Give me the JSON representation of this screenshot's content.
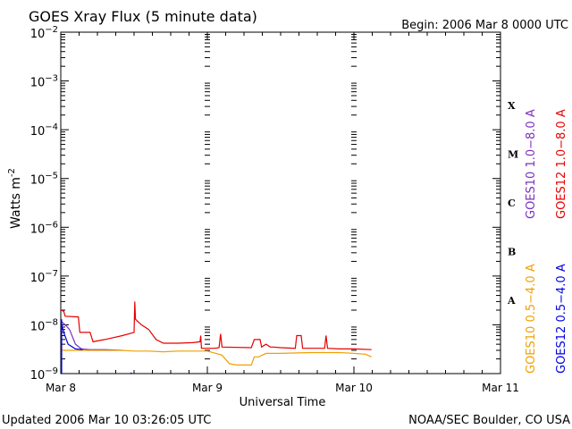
{
  "header": {
    "title": "GOES Xray Flux (5 minute data)",
    "begin": "Begin:  2006 Mar 8 0000 UTC"
  },
  "footer": {
    "updated": "Updated 2006 Mar 10 03:26:05 UTC",
    "source": "NOAA/SEC Boulder, CO USA"
  },
  "chart_data": {
    "type": "line",
    "title": "GOES Xray Flux (5 minute data)",
    "xlabel": "Universal Time",
    "ylabel": "Watts m",
    "ylabel_sup": "-2",
    "yscale": "log",
    "ylim": [
      1e-09,
      0.01
    ],
    "xlim": [
      0,
      3
    ],
    "x_unit": "days since 2006 Mar 8 0000 UTC",
    "x_ticks": [
      {
        "x": 0,
        "label": "Mar 8"
      },
      {
        "x": 1,
        "label": "Mar 9"
      },
      {
        "x": 2,
        "label": "Mar 10"
      },
      {
        "x": 3,
        "label": "Mar 11"
      }
    ],
    "y_ticks": [
      {
        "exp": -2,
        "base": "10",
        "sup": "−2"
      },
      {
        "exp": -3,
        "base": "10",
        "sup": "−3"
      },
      {
        "exp": -4,
        "base": "10",
        "sup": "−4"
      },
      {
        "exp": -5,
        "base": "10",
        "sup": "−5"
      },
      {
        "exp": -6,
        "base": "10",
        "sup": "−6"
      },
      {
        "exp": -7,
        "base": "10",
        "sup": "−7"
      },
      {
        "exp": -8,
        "base": "10",
        "sup": "−8"
      },
      {
        "exp": -9,
        "base": "10",
        "sup": "−9"
      }
    ],
    "flare_classes": [
      {
        "label": "X",
        "exp": -3.5
      },
      {
        "label": "M",
        "exp": -4.5
      },
      {
        "label": "C",
        "exp": -5.5
      },
      {
        "label": "B",
        "exp": -6.5
      },
      {
        "label": "A",
        "exp": -7.5
      }
    ],
    "grid": true,
    "legend_position": "right",
    "legend": [
      {
        "name": "GOES10 1.0-8.0 A",
        "label": "GOES10 1.0−8.0 A",
        "color": "#7b2fbe"
      },
      {
        "name": "GOES12 1.0-8.0 A",
        "label": "GOES12 1.0−8.0 A",
        "color": "#e60000"
      },
      {
        "name": "GOES10 0.5-4.0 A",
        "label": "GOES10 0.5−4.0 A",
        "color": "#f0a000"
      },
      {
        "name": "GOES12 0.5-4.0 A",
        "label": "GOES12 0.5−4.0 A",
        "color": "#0000e0"
      }
    ],
    "series": [
      {
        "name": "GOES10 1.0-8.0 A",
        "color": "#7b2fbe",
        "points": [
          [
            0.0,
            1.2e-08
          ],
          [
            0.03,
            1e-08
          ],
          [
            0.06,
            8e-09
          ],
          [
            0.1,
            4e-09
          ],
          [
            0.14,
            3.2e-09
          ],
          [
            0.2,
            3.1e-09
          ],
          [
            0.3,
            3.1e-09
          ],
          [
            0.42,
            3e-09
          ]
        ]
      },
      {
        "name": "GOES12 1.0-8.0 A",
        "color": "#e60000",
        "points": [
          [
            0.0,
            2e-08
          ],
          [
            0.02,
            1.9e-08
          ],
          [
            0.03,
            1.5e-08
          ],
          [
            0.12,
            1.45e-08
          ],
          [
            0.13,
            7e-09
          ],
          [
            0.2,
            7e-09
          ],
          [
            0.22,
            4.5e-09
          ],
          [
            0.3,
            5e-09
          ],
          [
            0.42,
            6e-09
          ],
          [
            0.5,
            7e-09
          ],
          [
            0.505,
            3e-08
          ],
          [
            0.51,
            1.3e-08
          ],
          [
            0.55,
            1e-08
          ],
          [
            0.6,
            8e-09
          ],
          [
            0.65,
            5e-09
          ],
          [
            0.7,
            4.2e-09
          ],
          [
            0.8,
            4.2e-09
          ],
          [
            0.9,
            4.3e-09
          ],
          [
            0.95,
            4.5e-09
          ],
          [
            0.955,
            6e-09
          ],
          [
            0.96,
            3.3e-09
          ],
          [
            1.05,
            3.3e-09
          ],
          [
            1.08,
            3.4e-09
          ],
          [
            1.09,
            6.5e-09
          ],
          [
            1.1,
            3.5e-09
          ],
          [
            1.3,
            3.4e-09
          ],
          [
            1.32,
            5e-09
          ],
          [
            1.36,
            5e-09
          ],
          [
            1.37,
            3.5e-09
          ],
          [
            1.4,
            4e-09
          ],
          [
            1.43,
            3.5e-09
          ],
          [
            1.45,
            3.5e-09
          ],
          [
            1.5,
            3.4e-09
          ],
          [
            1.6,
            3.3e-09
          ],
          [
            1.61,
            6e-09
          ],
          [
            1.64,
            6e-09
          ],
          [
            1.65,
            3.3e-09
          ],
          [
            1.8,
            3.3e-09
          ],
          [
            1.81,
            6e-09
          ],
          [
            1.82,
            3.3e-09
          ],
          [
            1.9,
            3.2e-09
          ],
          [
            2.0,
            3.2e-09
          ],
          [
            2.12,
            3.1e-09
          ]
        ]
      },
      {
        "name": "GOES10 0.5-4.0 A",
        "color": "#f0a000",
        "points": [
          [
            0.0,
            3e-09
          ],
          [
            0.42,
            3e-09
          ],
          [
            0.5,
            2.9e-09
          ],
          [
            0.6,
            2.9e-09
          ],
          [
            0.7,
            2.8e-09
          ],
          [
            0.8,
            2.9e-09
          ],
          [
            0.9,
            2.9e-09
          ],
          [
            1.0,
            2.9e-09
          ],
          [
            1.1,
            2.4e-09
          ],
          [
            1.15,
            1.6e-09
          ],
          [
            1.2,
            1.5e-09
          ],
          [
            1.3,
            1.5e-09
          ],
          [
            1.32,
            2.2e-09
          ],
          [
            1.35,
            2.2e-09
          ],
          [
            1.4,
            2.6e-09
          ],
          [
            1.5,
            2.6e-09
          ],
          [
            1.7,
            2.7e-09
          ],
          [
            1.9,
            2.7e-09
          ],
          [
            2.0,
            2.6e-09
          ],
          [
            2.08,
            2.5e-09
          ],
          [
            2.12,
            2.2e-09
          ]
        ]
      },
      {
        "name": "GOES12 0.5-4.0 A",
        "color": "#0000e0",
        "points": [
          [
            0.0,
            1.2e-08
          ],
          [
            0.02,
            7e-09
          ],
          [
            0.05,
            4e-09
          ],
          [
            0.1,
            3.2e-09
          ],
          [
            0.15,
            3.1e-09
          ]
        ],
        "spikes": [
          [
            0.48,
            1.05e-09
          ],
          [
            0.005,
            1.3e-08
          ]
        ]
      }
    ]
  }
}
